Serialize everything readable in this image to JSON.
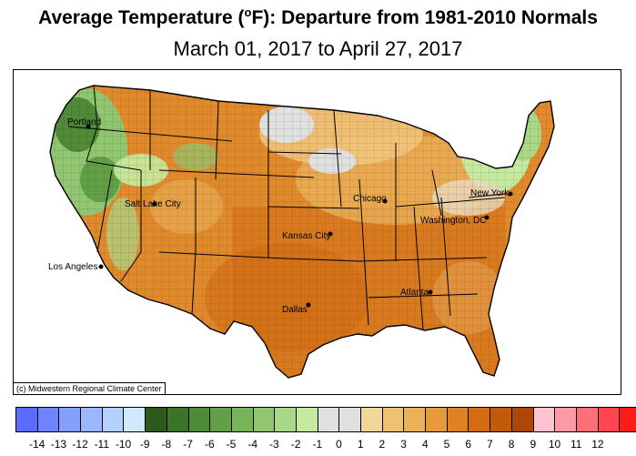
{
  "header": {
    "title_main": "Average Temperature (",
    "title_sup": "o",
    "title_rest": "F): Departure from 1981-2010 Normals",
    "subtitle": "March 01, 2017 to April 27, 2017"
  },
  "map": {
    "cities": [
      "Portland",
      "Salt Lake City",
      "Los Angeles",
      "Kansas City",
      "Dallas",
      "Chicago",
      "Washington, DC",
      "New York",
      "Atlanta"
    ],
    "credit": "(c) Midwestern Regional Climate Center"
  },
  "legend": {
    "colors": [
      "#5a6cff",
      "#6f84ff",
      "#84a0ff",
      "#9bb7ff",
      "#b3d0ff",
      "#cfe9ff",
      "#2d5a1b",
      "#3c7427",
      "#4f8a36",
      "#61a047",
      "#77b459",
      "#8fc66f",
      "#a8d888",
      "#c5ea9f",
      "#e0e0e0",
      "#e0e0e0",
      "#f2d79a",
      "#eec272",
      "#eab05a",
      "#e59a3c",
      "#de8223",
      "#d36c13",
      "#c25a0b",
      "#ad4707",
      "#ffc2d0",
      "#ff99a6",
      "#ff6f78",
      "#ff454d",
      "#ff1a1a"
    ],
    "labels": [
      "-14",
      "-13",
      "-12",
      "-11",
      "-10",
      "-9",
      "-8",
      "-7",
      "-6",
      "-5",
      "-4",
      "-3",
      "-2",
      "-1",
      "0",
      "1",
      "2",
      "3",
      "4",
      "5",
      "6",
      "7",
      "8",
      "9",
      "10",
      "11",
      "12"
    ]
  }
}
